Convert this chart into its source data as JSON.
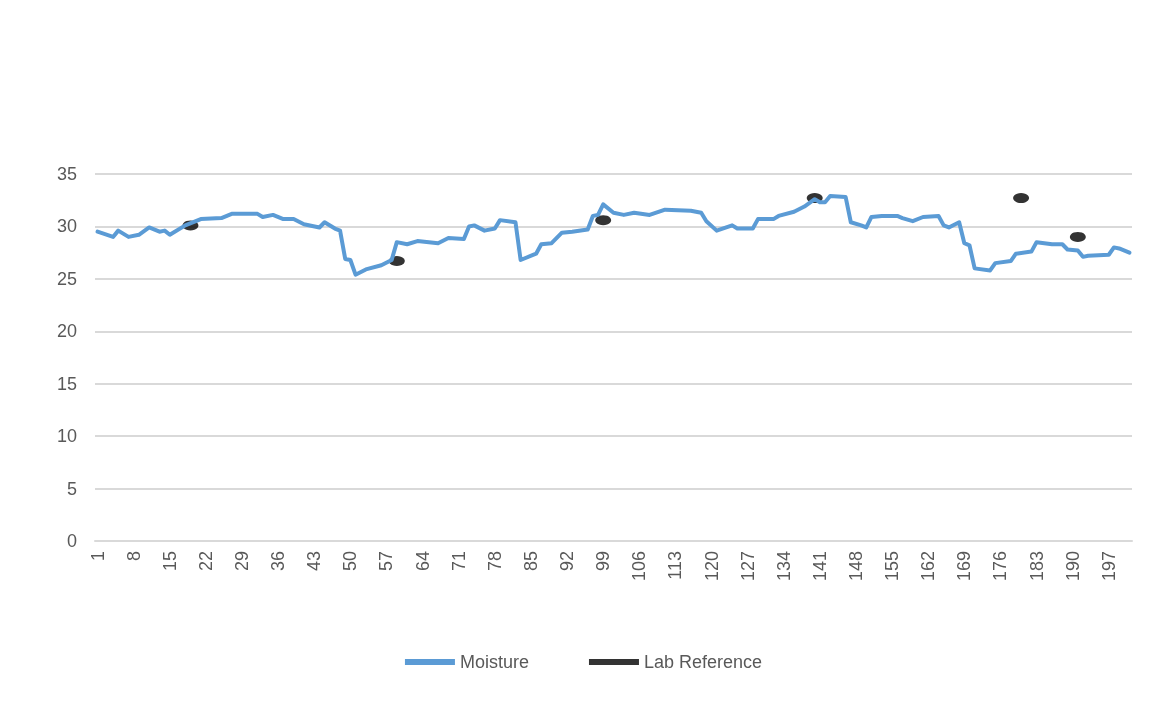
{
  "chart_data": {
    "type": "line",
    "xlim": [
      0.5,
      201.5
    ],
    "xticks": [
      1,
      8,
      15,
      22,
      29,
      36,
      43,
      50,
      57,
      64,
      71,
      78,
      85,
      92,
      99,
      106,
      113,
      120,
      127,
      134,
      141,
      148,
      155,
      162,
      169,
      176,
      183,
      190,
      197
    ],
    "ylim": [
      0,
      35
    ],
    "yticks": [
      0,
      5,
      10,
      15,
      20,
      25,
      30,
      35
    ],
    "grid": "y",
    "legend": "bottom",
    "series": [
      {
        "name": "Moisture",
        "color": "#5b9bd5",
        "marker": "none",
        "x": [
          1,
          4,
          5,
          7,
          9,
          11,
          13,
          14,
          15,
          18,
          21,
          25,
          27,
          32,
          33,
          35,
          37,
          39,
          41,
          44,
          45,
          47,
          48,
          49,
          50,
          51,
          53,
          56,
          58,
          59,
          61,
          63,
          67,
          69,
          72,
          73,
          74,
          76,
          78,
          79,
          82,
          83,
          86,
          87,
          89,
          91,
          93,
          96,
          97,
          98,
          99,
          101,
          103,
          105,
          108,
          111,
          116,
          118,
          119,
          121,
          124,
          125,
          128,
          129,
          132,
          133,
          136,
          138,
          140,
          141,
          142,
          143,
          146,
          147,
          149,
          150,
          151,
          153,
          156,
          157,
          159,
          161,
          164,
          165,
          166,
          168,
          169,
          170,
          171,
          174,
          175,
          178,
          179,
          182,
          183,
          186,
          188,
          189,
          191,
          192,
          193,
          197,
          198,
          199,
          201
        ],
        "values": [
          29.5,
          29.0,
          29.6,
          29.0,
          29.2,
          29.9,
          29.5,
          29.6,
          29.2,
          30.1,
          30.7,
          30.8,
          31.2,
          31.2,
          30.9,
          31.1,
          30.7,
          30.7,
          30.2,
          29.9,
          30.4,
          29.8,
          29.6,
          26.9,
          26.8,
          25.4,
          25.9,
          26.3,
          26.8,
          28.5,
          28.3,
          28.6,
          28.4,
          28.9,
          28.8,
          30.0,
          30.1,
          29.6,
          29.8,
          30.6,
          30.4,
          26.8,
          27.4,
          28.3,
          28.4,
          29.4,
          29.5,
          29.7,
          31.0,
          31.1,
          32.1,
          31.3,
          31.1,
          31.3,
          31.1,
          31.6,
          31.5,
          31.3,
          30.5,
          29.6,
          30.1,
          29.8,
          29.8,
          30.7,
          30.7,
          31.0,
          31.4,
          31.9,
          32.6,
          32.3,
          32.3,
          32.9,
          32.8,
          30.4,
          30.1,
          29.9,
          30.9,
          31.0,
          31.0,
          30.8,
          30.5,
          30.9,
          31.0,
          30.1,
          29.9,
          30.4,
          28.4,
          28.2,
          26.0,
          25.8,
          26.5,
          26.7,
          27.4,
          27.6,
          28.5,
          28.3,
          28.3,
          27.8,
          27.7,
          27.1,
          27.2,
          27.3,
          28.0,
          27.9,
          27.5
        ]
      },
      {
        "name": "Lab Reference",
        "type": "scatter",
        "color": "#000000",
        "marker": "circle",
        "x": [
          19,
          59,
          99,
          140,
          180,
          191
        ],
        "values": [
          30.1,
          26.7,
          30.6,
          32.7,
          32.7,
          29.0
        ]
      }
    ]
  }
}
